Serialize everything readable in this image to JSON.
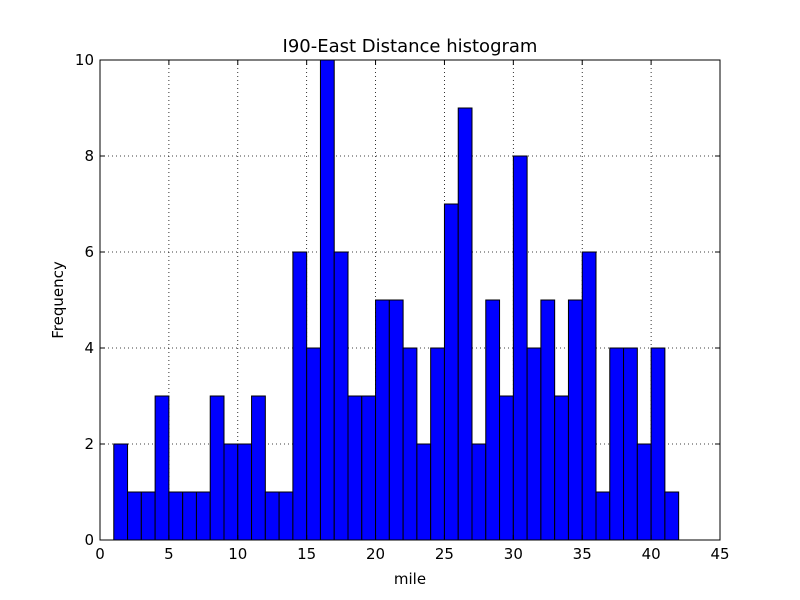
{
  "chart_data": {
    "type": "bar",
    "title": "I90-East Distance histogram",
    "xlabel": "mile",
    "ylabel": "Frequency",
    "xlim": [
      0,
      45
    ],
    "ylim": [
      0,
      10
    ],
    "x_ticks": [
      0,
      5,
      10,
      15,
      20,
      25,
      30,
      35,
      40,
      45
    ],
    "y_ticks": [
      0,
      2,
      4,
      6,
      8,
      10
    ],
    "grid": true,
    "bar_color": "#0000ff",
    "bins": {
      "start": 1.0,
      "width": 1.0,
      "counts": [
        2,
        1,
        1,
        3,
        1,
        1,
        1,
        3,
        2,
        2,
        3,
        1,
        1,
        6,
        4,
        10,
        6,
        3,
        3,
        5,
        5,
        4,
        2,
        4,
        7,
        9,
        2,
        5,
        3,
        8,
        4,
        5,
        3,
        5,
        6,
        1,
        4,
        4,
        2,
        4,
        1
      ]
    }
  }
}
